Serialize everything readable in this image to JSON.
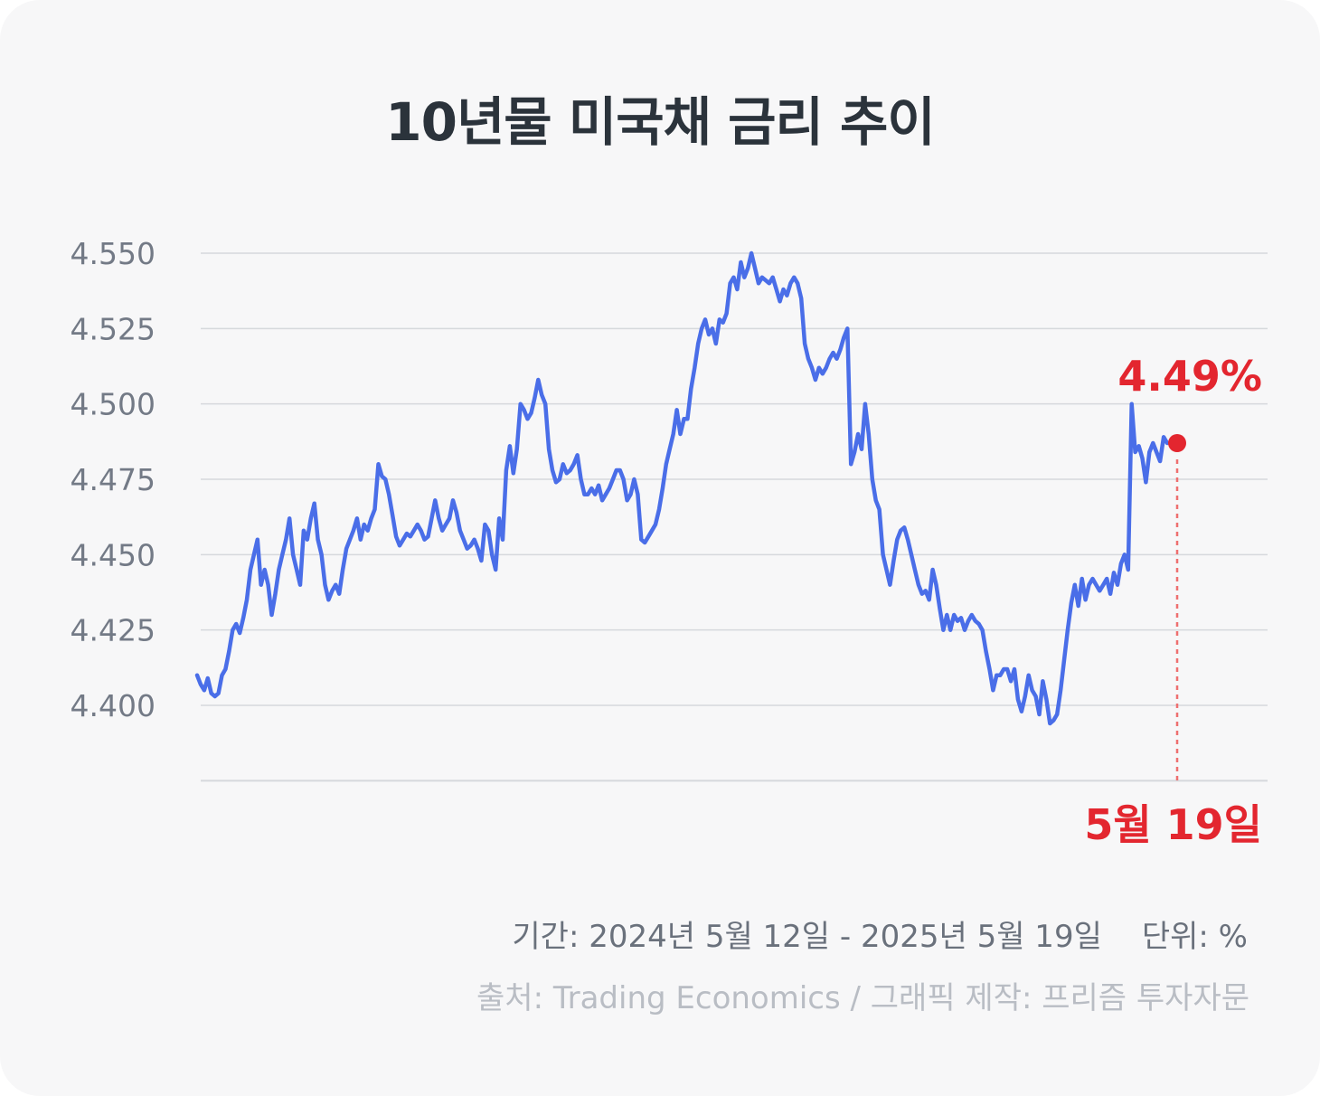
{
  "footer": {
    "period": "기간: 2024년 5월 12일 - 2025년 5월 19일",
    "unit": "단위: %",
    "source": "출처: Trading Economics  / 그래픽 제작: 프리즘 투자자문"
  },
  "colors": {
    "line": "#4a6ee8",
    "highlight": "#e3262f",
    "grid": "#d6d8dc",
    "tick_text": "#737a86",
    "title_text": "#2b333b",
    "background": "#f7f7f8"
  },
  "chart_data": {
    "type": "line",
    "title": "10년물 미국채 금리 추이",
    "xlabel": "",
    "ylabel": "",
    "ylim": [
      4.375,
      4.55
    ],
    "yticks": [
      4.4,
      4.425,
      4.45,
      4.475,
      4.5,
      4.525,
      4.55
    ],
    "ytick_labels": [
      "4.400",
      "4.425",
      "4.450",
      "4.475",
      "4.500",
      "4.525",
      "4.550"
    ],
    "grid": true,
    "x_start": "2024년 5월 12일",
    "x_end": "2025년 5월 19일",
    "series": [
      {
        "values": [
          4.41,
          4.407,
          4.405,
          4.409,
          4.404,
          4.403,
          4.404,
          4.41,
          4.412,
          4.418,
          4.425,
          4.427,
          4.424,
          4.429,
          4.435,
          4.445,
          4.45,
          4.455,
          4.44,
          4.445,
          4.44,
          4.43,
          4.437,
          4.445,
          4.45,
          4.455,
          4.462,
          4.45,
          4.445,
          4.44,
          4.458,
          4.455,
          4.462,
          4.467,
          4.455,
          4.45,
          4.44,
          4.435,
          4.438,
          4.44,
          4.437,
          4.445,
          4.452,
          4.455,
          4.458,
          4.462,
          4.455,
          4.46,
          4.458,
          4.462,
          4.465,
          4.48,
          4.476,
          4.475,
          4.47,
          4.463,
          4.456,
          4.453,
          4.455,
          4.457,
          4.456,
          4.458,
          4.46,
          4.458,
          4.455,
          4.456,
          4.462,
          4.468,
          4.462,
          4.458,
          4.46,
          4.462,
          4.468,
          4.464,
          4.458,
          4.455,
          4.452,
          4.453,
          4.455,
          4.452,
          4.448,
          4.46,
          4.458,
          4.45,
          4.445,
          4.462,
          4.455,
          4.478,
          4.486,
          4.477,
          4.485,
          4.5,
          4.498,
          4.495,
          4.497,
          4.502,
          4.508,
          4.503,
          4.5,
          4.485,
          4.478,
          4.474,
          4.475,
          4.48,
          4.477,
          4.478,
          4.48,
          4.483,
          4.475,
          4.47,
          4.47,
          4.472,
          4.47,
          4.473,
          4.468,
          4.47,
          4.472,
          4.475,
          4.478,
          4.478,
          4.475,
          4.468,
          4.47,
          4.475,
          4.47,
          4.455,
          4.454,
          4.456,
          4.458,
          4.46,
          4.465,
          4.472,
          4.48,
          4.485,
          4.49,
          4.498,
          4.49,
          4.495,
          4.495,
          4.505,
          4.512,
          4.52,
          4.525,
          4.528,
          4.523,
          4.525,
          4.52,
          4.528,
          4.527,
          4.53,
          4.54,
          4.542,
          4.538,
          4.547,
          4.542,
          4.545,
          4.55,
          4.545,
          4.54,
          4.542,
          4.541,
          4.54,
          4.542,
          4.538,
          4.534,
          4.538,
          4.536,
          4.54,
          4.542,
          4.54,
          4.535,
          4.52,
          4.515,
          4.512,
          4.508,
          4.512,
          4.51,
          4.512,
          4.515,
          4.517,
          4.515,
          4.518,
          4.522,
          4.525,
          4.48,
          4.484,
          4.49,
          4.485,
          4.5,
          4.49,
          4.475,
          4.468,
          4.465,
          4.45,
          4.445,
          4.44,
          4.448,
          4.455,
          4.458,
          4.459,
          4.455,
          4.45,
          4.445,
          4.44,
          4.437,
          4.438,
          4.435,
          4.445,
          4.44,
          4.432,
          4.425,
          4.43,
          4.425,
          4.43,
          4.428,
          4.429,
          4.425,
          4.428,
          4.43,
          4.428,
          4.427,
          4.425,
          4.418,
          4.412,
          4.405,
          4.41,
          4.41,
          4.412,
          4.412,
          4.408,
          4.412,
          4.402,
          4.398,
          4.403,
          4.41,
          4.405,
          4.403,
          4.397,
          4.408,
          4.402,
          4.394,
          4.395,
          4.397,
          4.405,
          4.415,
          4.425,
          4.434,
          4.44,
          4.433,
          4.442,
          4.435,
          4.44,
          4.442,
          4.44,
          4.438,
          4.44,
          4.442,
          4.437,
          4.444,
          4.44,
          4.447,
          4.45,
          4.445,
          4.5,
          4.484,
          4.486,
          4.482,
          4.474,
          4.484,
          4.487,
          4.484,
          4.481,
          4.489,
          4.487
        ]
      }
    ],
    "annotations": [
      {
        "label": "4.49%",
        "value": 4.487
      },
      {
        "label": "5월 19일"
      }
    ]
  }
}
